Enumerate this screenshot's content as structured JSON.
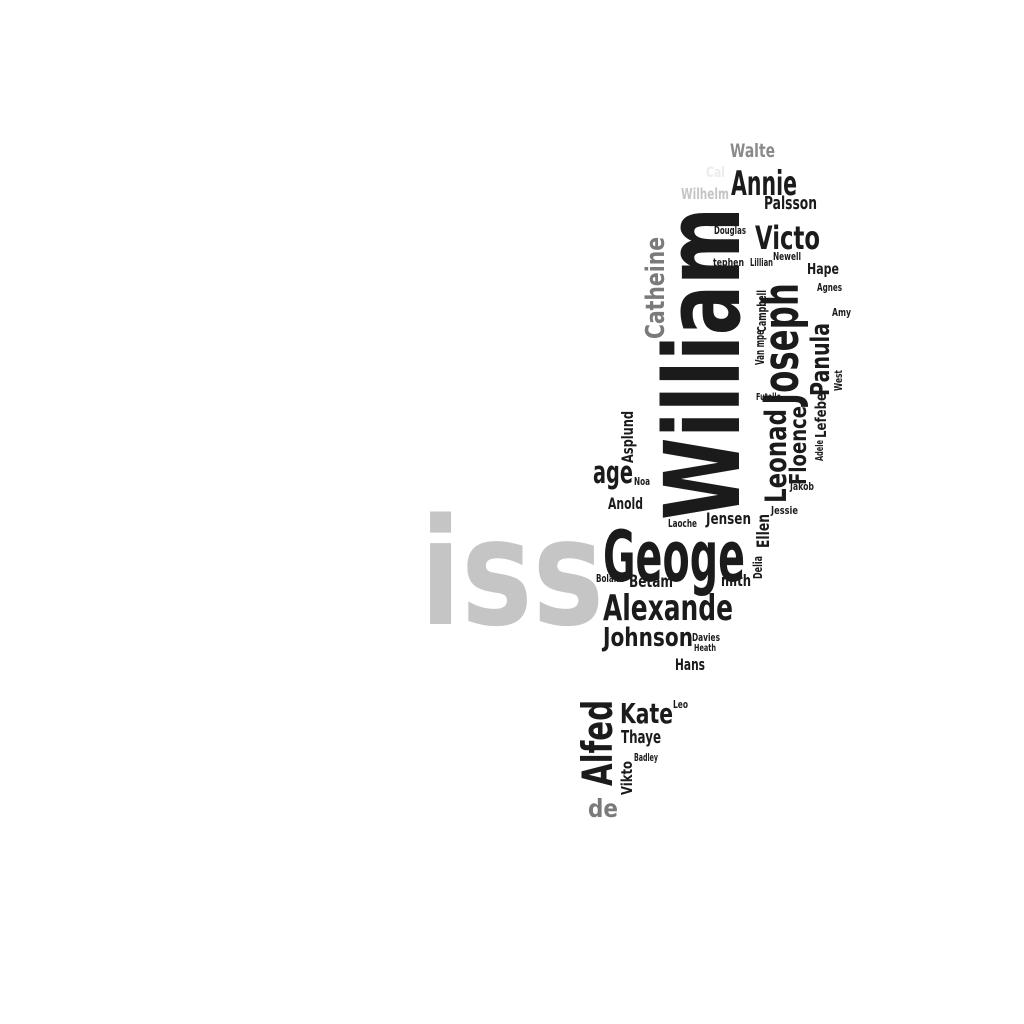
{
  "words": [
    {
      "text": "William",
      "color": "#1b1b1b"
    },
    {
      "text": "iss",
      "color": "#c5c5c5"
    },
    {
      "text": "Geoge",
      "color": "#1b1b1b"
    },
    {
      "text": "Alexande",
      "color": "#1b1b1b"
    },
    {
      "text": "Joseph",
      "color": "#1b1b1b"
    },
    {
      "text": "Johnson",
      "color": "#1b1b1b"
    },
    {
      "text": "Alfed",
      "color": "#1b1b1b"
    },
    {
      "text": "Leonad",
      "color": "#1b1b1b"
    },
    {
      "text": "Victo",
      "color": "#1b1b1b"
    },
    {
      "text": "Annie",
      "color": "#1b1b1b"
    },
    {
      "text": "Catheine",
      "color": "#7a7a7a"
    },
    {
      "text": "Kate",
      "color": "#1b1b1b"
    },
    {
      "text": "age",
      "color": "#1b1b1b"
    },
    {
      "text": "Floence",
      "color": "#1b1b1b"
    },
    {
      "text": "Panula",
      "color": "#1b1b1b"
    },
    {
      "text": "de",
      "color": "#7a7a7a"
    },
    {
      "text": "Walte",
      "color": "#8a8a8a"
    },
    {
      "text": "Palsson",
      "color": "#1b1b1b"
    },
    {
      "text": "Thaye",
      "color": "#1b1b1b"
    },
    {
      "text": "Lefebe",
      "color": "#1b1b1b"
    },
    {
      "text": "Jensen",
      "color": "#1b1b1b"
    },
    {
      "text": "Betam",
      "color": "#1b1b1b"
    },
    {
      "text": "Anold",
      "color": "#1b1b1b"
    },
    {
      "text": "Hans",
      "color": "#1b1b1b"
    },
    {
      "text": "Hape",
      "color": "#1b1b1b"
    },
    {
      "text": "Ellen",
      "color": "#1b1b1b"
    },
    {
      "text": "mith",
      "color": "#1b1b1b"
    },
    {
      "text": "Asplund",
      "color": "#1b1b1b"
    },
    {
      "text": "Wilhelm",
      "color": "#c5c5c5"
    },
    {
      "text": "Cal",
      "color": "#ececec"
    },
    {
      "text": "Vikto",
      "color": "#1b1b1b"
    },
    {
      "text": "Douglas",
      "color": "#1b1b1b"
    },
    {
      "text": "tephen",
      "color": "#1b1b1b"
    },
    {
      "text": "Lillian",
      "color": "#1b1b1b"
    },
    {
      "text": "Newell",
      "color": "#1b1b1b"
    },
    {
      "text": "Agnes",
      "color": "#1b1b1b"
    },
    {
      "text": "Amy",
      "color": "#1b1b1b"
    },
    {
      "text": "Campbell",
      "color": "#1b1b1b"
    },
    {
      "text": "Van mpe",
      "color": "#1b1b1b"
    },
    {
      "text": "West",
      "color": "#1b1b1b"
    },
    {
      "text": "Futelle",
      "color": "#1b1b1b"
    },
    {
      "text": "Adele",
      "color": "#1b1b1b"
    },
    {
      "text": "Jakob",
      "color": "#1b1b1b"
    },
    {
      "text": "Jessie",
      "color": "#1b1b1b"
    },
    {
      "text": "Noa",
      "color": "#1b1b1b"
    },
    {
      "text": "Laoche",
      "color": "#1b1b1b"
    },
    {
      "text": "Delia",
      "color": "#1b1b1b"
    },
    {
      "text": "Boland",
      "color": "#1b1b1b"
    },
    {
      "text": "Davies",
      "color": "#1b1b1b"
    },
    {
      "text": "Heath",
      "color": "#1b1b1b"
    },
    {
      "text": "Leo",
      "color": "#1b1b1b"
    },
    {
      "text": "Badley",
      "color": "#1b1b1b"
    }
  ]
}
